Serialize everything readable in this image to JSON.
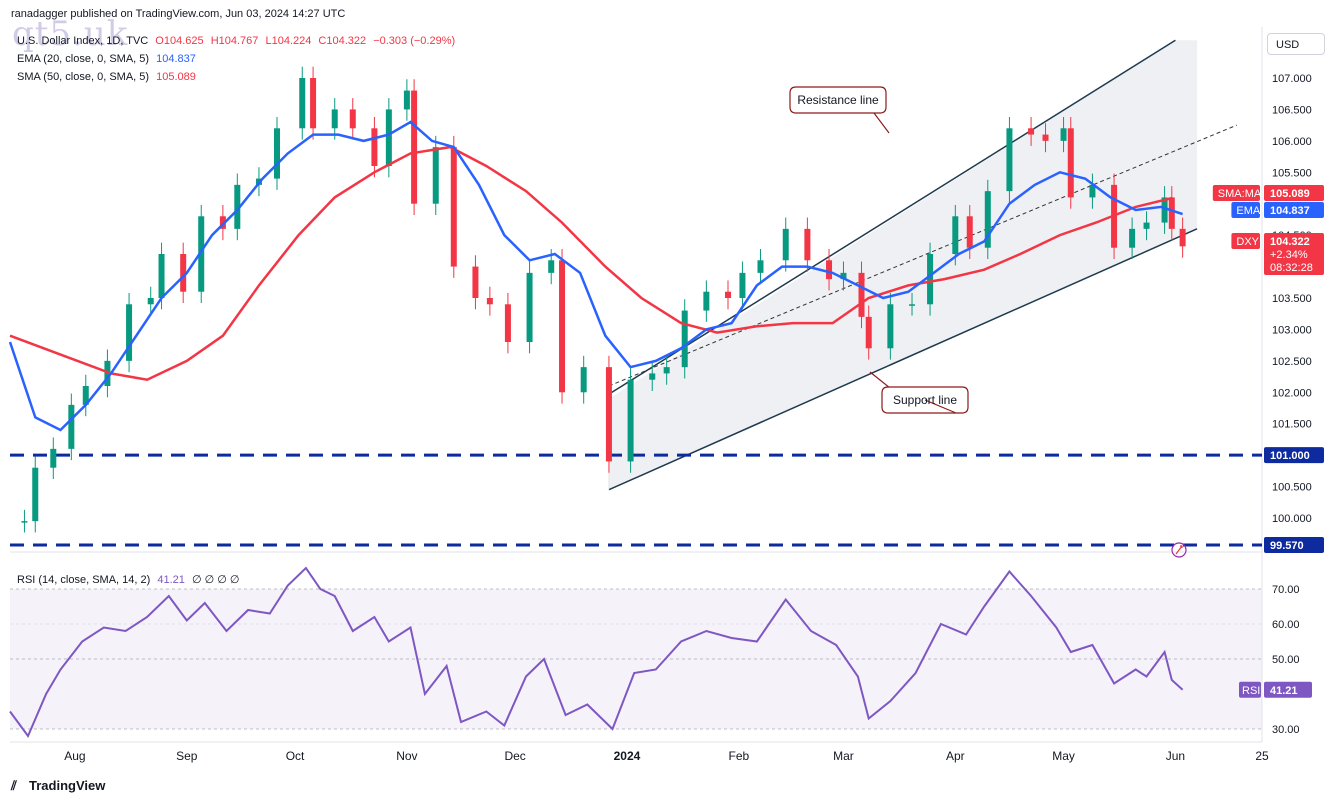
{
  "header": {
    "published_by": "ranadagger published on TradingView.com, Jun 03, 2024 14:27 UTC",
    "watermark": "qt5.uk",
    "currency_button": "USD"
  },
  "legend": {
    "symbol": "U.S. Dollar Index, 1D, TVC",
    "ohlc": {
      "O": "O104.625",
      "H": "H104.767",
      "L": "L104.224",
      "C": "C104.322",
      "change": "−0.303 (−0.29%)"
    },
    "ema": {
      "label": "EMA (20, close, 0, SMA, 5)",
      "value": "104.837"
    },
    "sma": {
      "label": "SMA (50, close, 0, SMA, 5)",
      "value": "105.089"
    },
    "rsi": {
      "label": "RSI (14, close, SMA, 14, 2)",
      "value": "41.21",
      "extra": "∅ ∅ ∅ ∅"
    }
  },
  "footer": {
    "brand": "TradingView"
  },
  "colors": {
    "up": "#089981",
    "down": "#f23645",
    "ema": "#2962ff",
    "sma": "#f23645",
    "rsi": "#7e57c2",
    "channel": "#1e3a4f",
    "level": "#0d2a9e",
    "annotation": "#8b1a1a"
  },
  "chart_data": {
    "type": "candlestick",
    "title": "U.S. Dollar Index, 1D, TVC",
    "x_ticks": [
      "Aug",
      "Sep",
      "Oct",
      "Nov",
      "Dec",
      "2024",
      "Feb",
      "Mar",
      "Apr",
      "May",
      "Jun",
      "25"
    ],
    "y_ticks": [
      "107.000",
      "106.500",
      "106.000",
      "105.500",
      "104.500",
      "103.500",
      "103.000",
      "102.500",
      "102.000",
      "101.500",
      "100.500",
      "100.000"
    ],
    "ylim": [
      99.5,
      107.5
    ],
    "price_tags": [
      {
        "label": "SMA:MA",
        "value": "105.089"
      },
      {
        "label": "EMA",
        "value": "104.837"
      },
      {
        "label": "DXY",
        "value": "104.322",
        "change": "+2.34%",
        "countdown": "08:32:28"
      },
      {
        "label": "",
        "value": "101.000"
      },
      {
        "label": "",
        "value": "99.570"
      }
    ],
    "horizontal_levels": [
      101.0,
      99.57
    ],
    "annotations": [
      {
        "text": "Resistance line"
      },
      {
        "text": "Support line"
      }
    ],
    "close_series": {
      "name": "DXY",
      "points": [
        {
          "x": "2023-07-18",
          "y": 99.95
        },
        {
          "x": "2023-07-21",
          "y": 100.8
        },
        {
          "x": "2023-07-26",
          "y": 101.1
        },
        {
          "x": "2023-07-31",
          "y": 101.8
        },
        {
          "x": "2023-08-04",
          "y": 102.1
        },
        {
          "x": "2023-08-10",
          "y": 102.5
        },
        {
          "x": "2023-08-16",
          "y": 103.4
        },
        {
          "x": "2023-08-22",
          "y": 103.5
        },
        {
          "x": "2023-08-25",
          "y": 104.2
        },
        {
          "x": "2023-08-31",
          "y": 103.6
        },
        {
          "x": "2023-09-05",
          "y": 104.8
        },
        {
          "x": "2023-09-11",
          "y": 104.6
        },
        {
          "x": "2023-09-15",
          "y": 105.3
        },
        {
          "x": "2023-09-21",
          "y": 105.4
        },
        {
          "x": "2023-09-26",
          "y": 106.2
        },
        {
          "x": "2023-10-03",
          "y": 107.0
        },
        {
          "x": "2023-10-06",
          "y": 106.2
        },
        {
          "x": "2023-10-12",
          "y": 106.5
        },
        {
          "x": "2023-10-17",
          "y": 106.2
        },
        {
          "x": "2023-10-23",
          "y": 105.6
        },
        {
          "x": "2023-10-27",
          "y": 106.5
        },
        {
          "x": "2023-11-01",
          "y": 106.8
        },
        {
          "x": "2023-11-03",
          "y": 105.0
        },
        {
          "x": "2023-11-09",
          "y": 105.9
        },
        {
          "x": "2023-11-14",
          "y": 104.0
        },
        {
          "x": "2023-11-20",
          "y": 103.5
        },
        {
          "x": "2023-11-24",
          "y": 103.4
        },
        {
          "x": "2023-11-29",
          "y": 102.8
        },
        {
          "x": "2023-12-05",
          "y": 103.9
        },
        {
          "x": "2023-12-11",
          "y": 104.1
        },
        {
          "x": "2023-12-14",
          "y": 102.0
        },
        {
          "x": "2023-12-20",
          "y": 102.4
        },
        {
          "x": "2023-12-27",
          "y": 100.9
        },
        {
          "x": "2024-01-02",
          "y": 102.2
        },
        {
          "x": "2024-01-08",
          "y": 102.3
        },
        {
          "x": "2024-01-12",
          "y": 102.4
        },
        {
          "x": "2024-01-17",
          "y": 103.3
        },
        {
          "x": "2024-01-23",
          "y": 103.6
        },
        {
          "x": "2024-01-29",
          "y": 103.5
        },
        {
          "x": "2024-02-02",
          "y": 103.9
        },
        {
          "x": "2024-02-07",
          "y": 104.1
        },
        {
          "x": "2024-02-14",
          "y": 104.6
        },
        {
          "x": "2024-02-20",
          "y": 104.1
        },
        {
          "x": "2024-02-26",
          "y": 103.8
        },
        {
          "x": "2024-03-01",
          "y": 103.9
        },
        {
          "x": "2024-03-06",
          "y": 103.2
        },
        {
          "x": "2024-03-08",
          "y": 102.7
        },
        {
          "x": "2024-03-14",
          "y": 103.4
        },
        {
          "x": "2024-03-20",
          "y": 103.4
        },
        {
          "x": "2024-03-25",
          "y": 104.2
        },
        {
          "x": "2024-04-01",
          "y": 104.8
        },
        {
          "x": "2024-04-05",
          "y": 104.3
        },
        {
          "x": "2024-04-10",
          "y": 105.2
        },
        {
          "x": "2024-04-16",
          "y": 106.2
        },
        {
          "x": "2024-04-22",
          "y": 106.1
        },
        {
          "x": "2024-04-26",
          "y": 106.0
        },
        {
          "x": "2024-05-01",
          "y": 106.2
        },
        {
          "x": "2024-05-03",
          "y": 105.1
        },
        {
          "x": "2024-05-09",
          "y": 105.3
        },
        {
          "x": "2024-05-15",
          "y": 104.3
        },
        {
          "x": "2024-05-20",
          "y": 104.6
        },
        {
          "x": "2024-05-24",
          "y": 104.7
        },
        {
          "x": "2024-05-29",
          "y": 105.1
        },
        {
          "x": "2024-05-31",
          "y": 104.6
        },
        {
          "x": "2024-06-03",
          "y": 104.322
        }
      ]
    },
    "ema_series": {
      "name": "EMA",
      "points": [
        {
          "x": "2023-07-14",
          "y": 102.8
        },
        {
          "x": "2023-07-21",
          "y": 101.6
        },
        {
          "x": "2023-07-28",
          "y": 101.4
        },
        {
          "x": "2023-08-04",
          "y": 101.8
        },
        {
          "x": "2023-08-11",
          "y": 102.3
        },
        {
          "x": "2023-08-18",
          "y": 102.9
        },
        {
          "x": "2023-08-25",
          "y": 103.5
        },
        {
          "x": "2023-09-01",
          "y": 103.9
        },
        {
          "x": "2023-09-08",
          "y": 104.5
        },
        {
          "x": "2023-09-15",
          "y": 104.9
        },
        {
          "x": "2023-09-22",
          "y": 105.4
        },
        {
          "x": "2023-09-29",
          "y": 105.8
        },
        {
          "x": "2023-10-06",
          "y": 106.1
        },
        {
          "x": "2023-10-13",
          "y": 106.1
        },
        {
          "x": "2023-10-20",
          "y": 106.0
        },
        {
          "x": "2023-10-27",
          "y": 106.1
        },
        {
          "x": "2023-11-02",
          "y": 106.3
        },
        {
          "x": "2023-11-08",
          "y": 106.0
        },
        {
          "x": "2023-11-14",
          "y": 105.9
        },
        {
          "x": "2023-11-21",
          "y": 105.3
        },
        {
          "x": "2023-11-28",
          "y": 104.5
        },
        {
          "x": "2023-12-05",
          "y": 104.1
        },
        {
          "x": "2023-12-12",
          "y": 104.2
        },
        {
          "x": "2023-12-19",
          "y": 103.9
        },
        {
          "x": "2023-12-26",
          "y": 102.9
        },
        {
          "x": "2024-01-02",
          "y": 102.4
        },
        {
          "x": "2024-01-09",
          "y": 102.5
        },
        {
          "x": "2024-01-16",
          "y": 102.7
        },
        {
          "x": "2024-01-23",
          "y": 103.0
        },
        {
          "x": "2024-01-30",
          "y": 103.1
        },
        {
          "x": "2024-02-06",
          "y": 103.7
        },
        {
          "x": "2024-02-13",
          "y": 104.0
        },
        {
          "x": "2024-02-20",
          "y": 104.0
        },
        {
          "x": "2024-02-27",
          "y": 103.9
        },
        {
          "x": "2024-03-05",
          "y": 103.7
        },
        {
          "x": "2024-03-12",
          "y": 103.5
        },
        {
          "x": "2024-03-19",
          "y": 103.6
        },
        {
          "x": "2024-03-26",
          "y": 103.9
        },
        {
          "x": "2024-04-02",
          "y": 104.2
        },
        {
          "x": "2024-04-09",
          "y": 104.4
        },
        {
          "x": "2024-04-16",
          "y": 105.0
        },
        {
          "x": "2024-04-23",
          "y": 105.3
        },
        {
          "x": "2024-04-30",
          "y": 105.5
        },
        {
          "x": "2024-05-07",
          "y": 105.4
        },
        {
          "x": "2024-05-14",
          "y": 105.1
        },
        {
          "x": "2024-05-21",
          "y": 104.9
        },
        {
          "x": "2024-05-28",
          "y": 104.95
        },
        {
          "x": "2024-06-03",
          "y": 104.837
        }
      ]
    },
    "sma_series": {
      "name": "SMA",
      "points": [
        {
          "x": "2023-07-14",
          "y": 102.9
        },
        {
          "x": "2023-07-28",
          "y": 102.6
        },
        {
          "x": "2023-08-11",
          "y": 102.3
        },
        {
          "x": "2023-08-21",
          "y": 102.2
        },
        {
          "x": "2023-09-01",
          "y": 102.5
        },
        {
          "x": "2023-09-11",
          "y": 102.9
        },
        {
          "x": "2023-09-21",
          "y": 103.7
        },
        {
          "x": "2023-10-02",
          "y": 104.5
        },
        {
          "x": "2023-10-12",
          "y": 105.1
        },
        {
          "x": "2023-10-23",
          "y": 105.5
        },
        {
          "x": "2023-11-02",
          "y": 105.8
        },
        {
          "x": "2023-11-13",
          "y": 105.9
        },
        {
          "x": "2023-11-23",
          "y": 105.6
        },
        {
          "x": "2023-12-04",
          "y": 105.2
        },
        {
          "x": "2023-12-14",
          "y": 104.7
        },
        {
          "x": "2023-12-26",
          "y": 104.0
        },
        {
          "x": "2024-01-05",
          "y": 103.5
        },
        {
          "x": "2024-01-16",
          "y": 103.1
        },
        {
          "x": "2024-01-26",
          "y": 102.95
        },
        {
          "x": "2024-02-06",
          "y": 103.05
        },
        {
          "x": "2024-02-16",
          "y": 103.1
        },
        {
          "x": "2024-02-27",
          "y": 103.1
        },
        {
          "x": "2024-03-08",
          "y": 103.5
        },
        {
          "x": "2024-03-19",
          "y": 103.7
        },
        {
          "x": "2024-03-29",
          "y": 103.8
        },
        {
          "x": "2024-04-09",
          "y": 103.95
        },
        {
          "x": "2024-04-19",
          "y": 104.2
        },
        {
          "x": "2024-04-30",
          "y": 104.5
        },
        {
          "x": "2024-05-10",
          "y": 104.7
        },
        {
          "x": "2024-05-21",
          "y": 104.95
        },
        {
          "x": "2024-05-31",
          "y": 105.089
        }
      ]
    },
    "rsi_panel": {
      "y_ticks": [
        "70.00",
        "60.00",
        "50.00",
        "30.00"
      ],
      "ylim": [
        27,
        77
      ],
      "current": "41.21",
      "points": [
        {
          "x": "2023-07-14",
          "y": 35
        },
        {
          "x": "2023-07-19",
          "y": 28
        },
        {
          "x": "2023-07-24",
          "y": 40
        },
        {
          "x": "2023-07-28",
          "y": 47
        },
        {
          "x": "2023-08-03",
          "y": 55
        },
        {
          "x": "2023-08-09",
          "y": 59
        },
        {
          "x": "2023-08-15",
          "y": 58
        },
        {
          "x": "2023-08-21",
          "y": 62
        },
        {
          "x": "2023-08-27",
          "y": 68
        },
        {
          "x": "2023-09-01",
          "y": 61
        },
        {
          "x": "2023-09-06",
          "y": 66
        },
        {
          "x": "2023-09-12",
          "y": 58
        },
        {
          "x": "2023-09-18",
          "y": 64
        },
        {
          "x": "2023-09-24",
          "y": 63
        },
        {
          "x": "2023-09-29",
          "y": 71
        },
        {
          "x": "2023-10-04",
          "y": 76
        },
        {
          "x": "2023-10-08",
          "y": 70
        },
        {
          "x": "2023-10-12",
          "y": 68
        },
        {
          "x": "2023-10-17",
          "y": 58
        },
        {
          "x": "2023-10-23",
          "y": 62
        },
        {
          "x": "2023-10-27",
          "y": 55
        },
        {
          "x": "2023-11-02",
          "y": 59
        },
        {
          "x": "2023-11-06",
          "y": 40
        },
        {
          "x": "2023-11-12",
          "y": 48
        },
        {
          "x": "2023-11-16",
          "y": 32
        },
        {
          "x": "2023-11-23",
          "y": 35
        },
        {
          "x": "2023-11-28",
          "y": 31
        },
        {
          "x": "2023-12-04",
          "y": 45
        },
        {
          "x": "2023-12-09",
          "y": 50
        },
        {
          "x": "2023-12-15",
          "y": 34
        },
        {
          "x": "2023-12-21",
          "y": 37
        },
        {
          "x": "2023-12-28",
          "y": 30
        },
        {
          "x": "2024-01-03",
          "y": 46
        },
        {
          "x": "2024-01-09",
          "y": 47
        },
        {
          "x": "2024-01-16",
          "y": 55
        },
        {
          "x": "2024-01-23",
          "y": 58
        },
        {
          "x": "2024-01-30",
          "y": 56
        },
        {
          "x": "2024-02-06",
          "y": 55
        },
        {
          "x": "2024-02-14",
          "y": 67
        },
        {
          "x": "2024-02-21",
          "y": 58
        },
        {
          "x": "2024-02-28",
          "y": 54
        },
        {
          "x": "2024-03-05",
          "y": 45
        },
        {
          "x": "2024-03-08",
          "y": 33
        },
        {
          "x": "2024-03-14",
          "y": 38
        },
        {
          "x": "2024-03-21",
          "y": 46
        },
        {
          "x": "2024-03-28",
          "y": 60
        },
        {
          "x": "2024-04-04",
          "y": 57
        },
        {
          "x": "2024-04-09",
          "y": 65
        },
        {
          "x": "2024-04-16",
          "y": 75
        },
        {
          "x": "2024-04-22",
          "y": 68
        },
        {
          "x": "2024-04-29",
          "y": 59
        },
        {
          "x": "2024-05-03",
          "y": 52
        },
        {
          "x": "2024-05-09",
          "y": 54
        },
        {
          "x": "2024-05-15",
          "y": 43
        },
        {
          "x": "2024-05-21",
          "y": 47
        },
        {
          "x": "2024-05-24",
          "y": 45
        },
        {
          "x": "2024-05-29",
          "y": 52
        },
        {
          "x": "2024-05-31",
          "y": 44
        },
        {
          "x": "2024-06-03",
          "y": 41.21
        }
      ]
    }
  }
}
